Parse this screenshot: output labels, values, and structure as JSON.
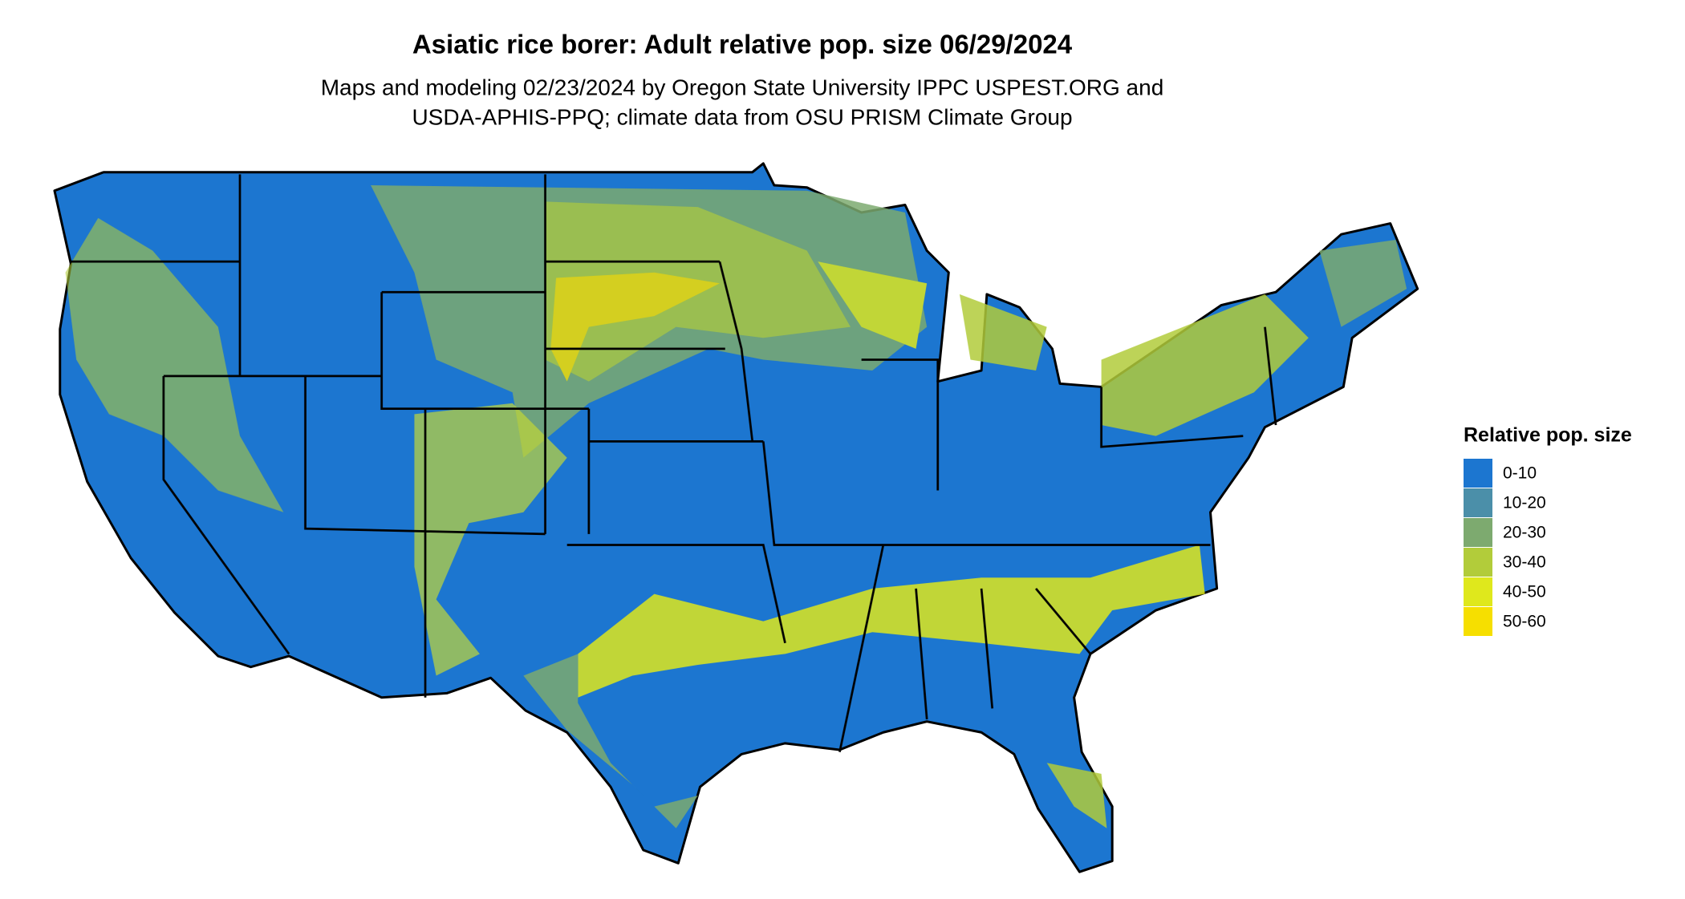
{
  "title": "Asiatic rice borer: Adult relative pop. size 06/29/2024",
  "subtitle": [
    "Maps and modeling 02/23/2024 by Oregon State University IPPC USPEST.ORG and",
    "USDA-APHIS-PPQ; climate data from OSU PRISM Climate Group"
  ],
  "legend": {
    "title": "Relative pop. size",
    "items": [
      {
        "label": "0-10",
        "color": "#1c76d0"
      },
      {
        "label": "10-20",
        "color": "#4b8fa9"
      },
      {
        "label": "20-30",
        "color": "#7daa6f"
      },
      {
        "label": "30-40",
        "color": "#b2cc3a"
      },
      {
        "label": "40-50",
        "color": "#dfe81c"
      },
      {
        "label": "50-60",
        "color": "#f6df00"
      }
    ]
  }
}
